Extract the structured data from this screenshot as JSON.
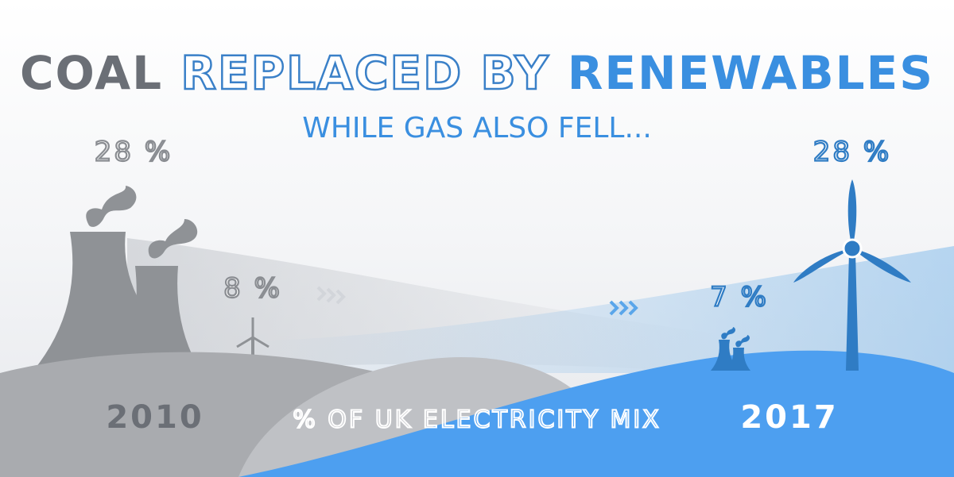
{
  "title": {
    "coal": "COAL",
    "middle": "REPLACED BY",
    "renewables": "RENEWABLES"
  },
  "subtitle": "WHILE GAS ALSO FELL...",
  "left": {
    "coal_share": "28 %",
    "renewables_share": "8 %",
    "year": "2010"
  },
  "right": {
    "coal_share": "7 %",
    "renewables_share": "28 %",
    "year": "2017"
  },
  "footer": "% OF UK ELECTRICITY MIX"
}
